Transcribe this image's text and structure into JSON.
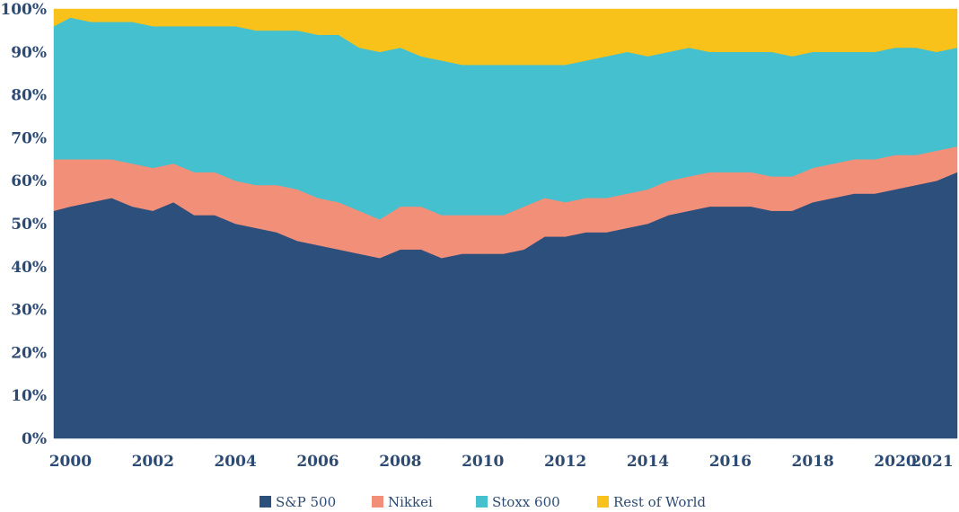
{
  "chart_data": {
    "type": "area",
    "stacked": true,
    "percent": true,
    "title": "",
    "xlabel": "",
    "ylabel": "",
    "xlim": [
      1999.6,
      2021.5
    ],
    "ylim": [
      0,
      100
    ],
    "x_ticks": [
      2000,
      2002,
      2004,
      2006,
      2008,
      2010,
      2012,
      2014,
      2016,
      2018,
      2020,
      2021
    ],
    "x_tick_labels": [
      "2000",
      "2002",
      "2004",
      "2006",
      "2008",
      "2010",
      "2012",
      "2014",
      "2016",
      "2018",
      "2020",
      "2021"
    ],
    "y_ticks": [
      0,
      10,
      20,
      30,
      40,
      50,
      60,
      70,
      80,
      90,
      100
    ],
    "y_tick_labels": [
      "0%",
      "10%",
      "20%",
      "30%",
      "40%",
      "50%",
      "60%",
      "70%",
      "80%",
      "90%",
      "100%"
    ],
    "legend_position": "bottom-center",
    "x": [
      1999.6,
      2000.0,
      2000.5,
      2001.0,
      2001.5,
      2002.0,
      2002.5,
      2003.0,
      2003.5,
      2004.0,
      2004.5,
      2005.0,
      2005.5,
      2006.0,
      2006.5,
      2007.0,
      2007.5,
      2008.0,
      2008.5,
      2009.0,
      2009.5,
      2010.0,
      2010.5,
      2011.0,
      2011.5,
      2012.0,
      2012.5,
      2013.0,
      2013.5,
      2014.0,
      2014.5,
      2015.0,
      2015.5,
      2016.0,
      2016.5,
      2017.0,
      2017.5,
      2018.0,
      2018.5,
      2019.0,
      2019.5,
      2020.0,
      2020.5,
      2021.0,
      2021.5
    ],
    "series": [
      {
        "name": "S&P 500",
        "color": "#2d4f7c",
        "values": [
          53,
          54,
          55,
          56,
          54,
          53,
          55,
          52,
          52,
          50,
          49,
          48,
          46,
          45,
          44,
          43,
          42,
          44,
          44,
          42,
          43,
          43,
          43,
          44,
          47,
          47,
          48,
          48,
          49,
          50,
          52,
          53,
          54,
          54,
          54,
          53,
          53,
          55,
          56,
          57,
          57,
          58,
          59,
          60,
          62
        ]
      },
      {
        "name": "Nikkei",
        "color": "#f28f79",
        "values": [
          12,
          11,
          10,
          9,
          10,
          10,
          9,
          10,
          10,
          10,
          10,
          11,
          12,
          11,
          11,
          10,
          9,
          10,
          10,
          10,
          9,
          9,
          9,
          10,
          9,
          8,
          8,
          8,
          8,
          8,
          8,
          8,
          8,
          8,
          8,
          8,
          8,
          8,
          8,
          8,
          8,
          8,
          7,
          7,
          6
        ]
      },
      {
        "name": "Stoxx 600",
        "color": "#45c0ce",
        "values": [
          31,
          33,
          32,
          32,
          33,
          33,
          32,
          34,
          34,
          36,
          36,
          36,
          37,
          38,
          39,
          38,
          39,
          37,
          35,
          36,
          35,
          35,
          35,
          33,
          31,
          32,
          32,
          33,
          33,
          31,
          30,
          30,
          28,
          28,
          28,
          29,
          28,
          27,
          26,
          25,
          25,
          25,
          25,
          23,
          23
        ]
      },
      {
        "name": "Rest of World",
        "color": "#f9c21b",
        "values": [
          4,
          2,
          3,
          3,
          3,
          4,
          4,
          4,
          4,
          4,
          5,
          5,
          5,
          6,
          6,
          9,
          10,
          9,
          11,
          12,
          13,
          13,
          13,
          13,
          13,
          13,
          12,
          11,
          10,
          11,
          10,
          9,
          10,
          10,
          10,
          10,
          11,
          10,
          10,
          10,
          10,
          9,
          9,
          10,
          9
        ]
      }
    ]
  }
}
